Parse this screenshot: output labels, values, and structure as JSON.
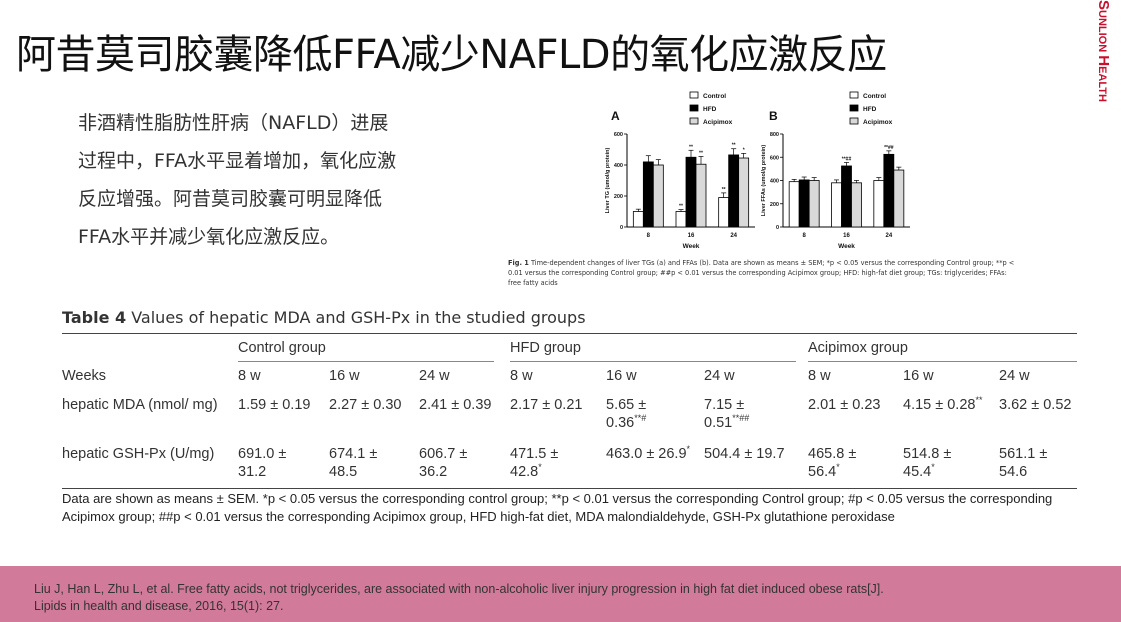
{
  "title": "阿昔莫司胶囊降低FFA减少NAFLD的氧化应激反应",
  "brand": {
    "part1": "S",
    "part2": "UNLION ",
    "part3": "H",
    "part4": "EALTH"
  },
  "intro_lines": [
    "非酒精性脂肪性肝病（NAFLD）进展",
    "过程中，FFA水平显着增加，氧化应激",
    "反应增强。阿昔莫司胶囊可明显降低",
    "FFA水平并减少氧化应激反应。"
  ],
  "figure": {
    "legend": [
      "Control",
      "HFD",
      "Acipimox"
    ],
    "colors": {
      "control": "#ffffff",
      "hfd": "#000000",
      "acipimox": "#d9d9d9"
    },
    "caption_label": "Fig. 1",
    "caption_text": " Time-dependent changes of liver TGs (a) and FFAs (b). Data are shown as means ± SEM; *p < 0.05 versus the corresponding Control group; **p < 0.01 versus the corresponding Control group; ##p < 0.01 versus the corresponding Acipimox group; HFD: high-fat diet group; TGs: triglycerides; FFAs: free fatty acids"
  },
  "chart_data": [
    {
      "type": "bar",
      "panel": "A",
      "categories": [
        "8",
        "16",
        "24"
      ],
      "xlabel": "Week",
      "ylabel": "Liver TG (umol/g protein)",
      "ylim": [
        0,
        600
      ],
      "yticks": [
        0,
        200,
        400,
        600
      ],
      "series": [
        {
          "name": "Control",
          "values": [
            100,
            100,
            190
          ],
          "errors": [
            15,
            12,
            30
          ]
        },
        {
          "name": "HFD",
          "values": [
            420,
            450,
            465
          ],
          "errors": [
            40,
            45,
            40
          ]
        },
        {
          "name": "Acipimox",
          "values": [
            400,
            405,
            445
          ],
          "errors": [
            35,
            50,
            30
          ]
        }
      ],
      "annotations": [
        [
          "",
          "**",
          "**"
        ],
        [
          "",
          "**",
          "**"
        ],
        [
          "",
          "**",
          "*"
        ]
      ]
    },
    {
      "type": "bar",
      "panel": "B",
      "categories": [
        "8",
        "16",
        "24"
      ],
      "xlabel": "Week",
      "ylabel": "Liver FFAs (umol/g protein)",
      "ylim": [
        0,
        800
      ],
      "yticks": [
        0,
        200,
        400,
        600,
        800
      ],
      "series": [
        {
          "name": "Control",
          "values": [
            390,
            380,
            400
          ],
          "errors": [
            20,
            25,
            25
          ]
        },
        {
          "name": "HFD",
          "values": [
            405,
            525,
            625
          ],
          "errors": [
            25,
            30,
            30
          ]
        },
        {
          "name": "Acipimox",
          "values": [
            400,
            380,
            490
          ],
          "errors": [
            25,
            20,
            25
          ]
        }
      ],
      "annotations": [
        [
          "",
          "",
          ""
        ],
        [
          "",
          "**##",
          "**##"
        ],
        [
          "",
          "",
          ""
        ]
      ]
    }
  ],
  "table": {
    "label": "Table 4",
    "title": " Values of hepatic MDA and GSH-Px in the studied groups",
    "groups": [
      "Control group",
      "HFD group",
      "Acipimox group"
    ],
    "weeks_label": "Weeks",
    "weeks": [
      "8 w",
      "16 w",
      "24 w",
      "8 w",
      "16 w",
      "24 w",
      "8 w",
      "16 w",
      "24 w"
    ],
    "rows": [
      {
        "label": "hepatic MDA (nmol/ mg)",
        "cells": [
          {
            "v": "1.59 ± 0.19",
            "s": ""
          },
          {
            "v": "2.27 ± 0.30",
            "s": ""
          },
          {
            "v": "2.41 ± 0.39",
            "s": ""
          },
          {
            "v": "2.17 ± 0.21",
            "s": ""
          },
          {
            "v": "5.65 ± 0.36",
            "s": "**#"
          },
          {
            "v": "7.15 ± 0.51",
            "s": "**##"
          },
          {
            "v": "2.01 ± 0.23",
            "s": ""
          },
          {
            "v": "4.15 ± 0.28",
            "s": "**"
          },
          {
            "v": "3.62 ± 0.52",
            "s": ""
          }
        ]
      },
      {
        "label": "hepatic GSH-Px (U/mg)",
        "cells": [
          {
            "v": "691.0 ± 31.2",
            "s": ""
          },
          {
            "v": "674.1 ± 48.5",
            "s": ""
          },
          {
            "v": "606.7 ± 36.2",
            "s": ""
          },
          {
            "v": "471.5 ± 42.8",
            "s": "*"
          },
          {
            "v": "463.0 ± 26.9",
            "s": "*"
          },
          {
            "v": "504.4 ± 19.7",
            "s": ""
          },
          {
            "v": "465.8 ± 56.4",
            "s": "*"
          },
          {
            "v": "514.8 ± 45.4",
            "s": "*"
          },
          {
            "v": "561.1 ± 54.6",
            "s": ""
          }
        ]
      }
    ],
    "note": "Data are shown as means ± SEM. *p < 0.05 versus the corresponding control group; **p < 0.01 versus the corresponding Control group; #p < 0.05 versus the corresponding Acipimox group; ##p < 0.01 versus the corresponding Acipimox group, HFD high-fat diet, MDA malondialdehyde, GSH-Px glutathione peroxidase"
  },
  "reference": [
    "Liu J, Han L, Zhu L, et al. Free fatty acids, not triglycerides, are associated with non-alcoholic liver injury progression in high fat diet induced obese rats[J].",
    "Lipids in health and disease, 2016, 15(1): 27."
  ]
}
